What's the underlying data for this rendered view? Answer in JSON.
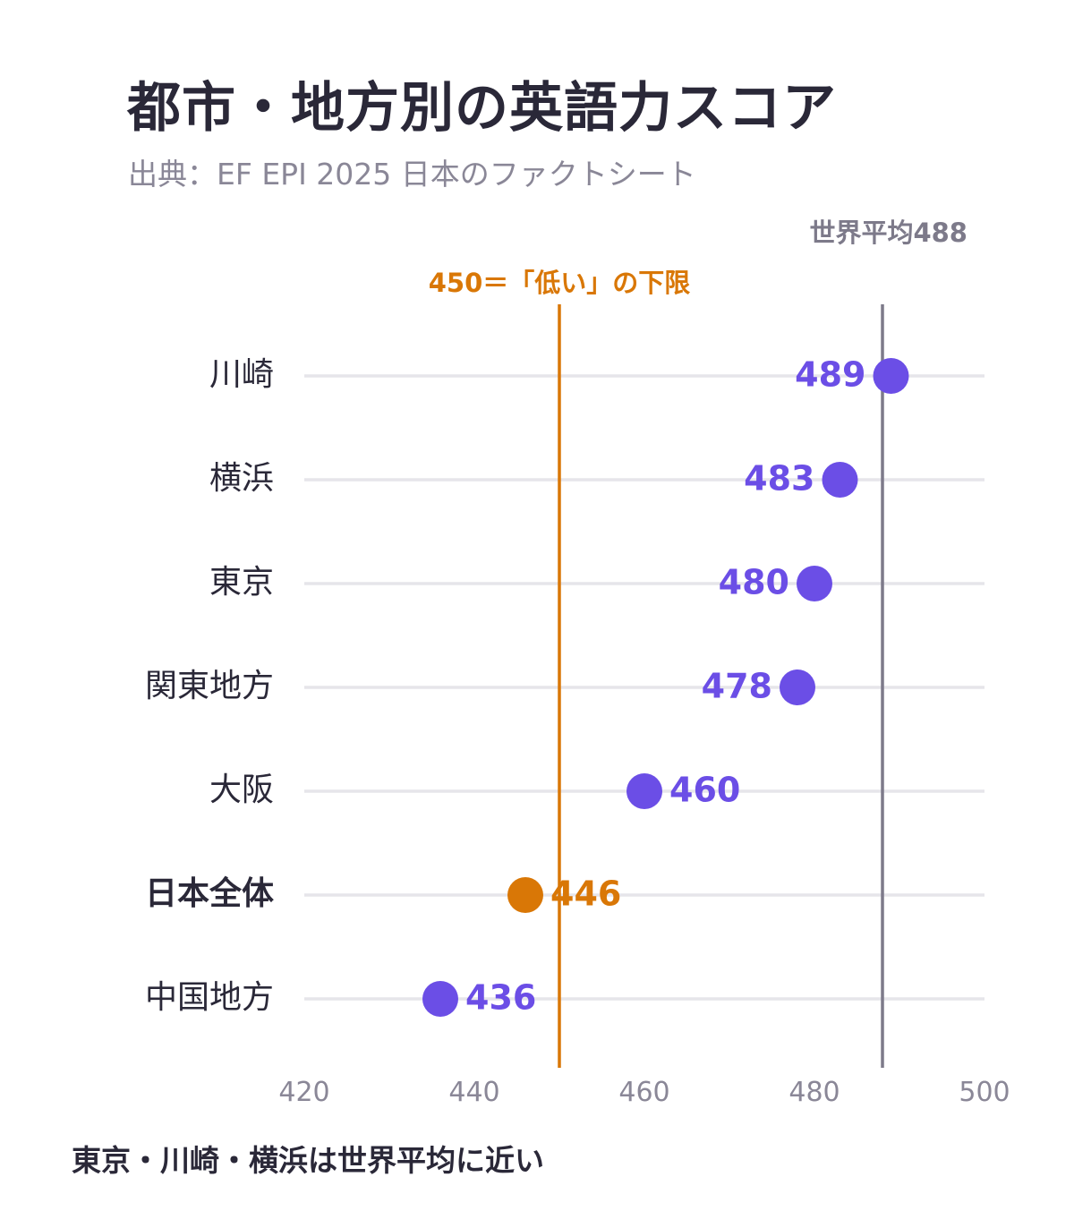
{
  "title": "都市・地方別の英語力スコア",
  "subtitle": "出典：EF EPI 2025 日本のファクトシート",
  "footnote": "東京・川崎・横浜は世界平均に近い",
  "colors": {
    "point": "#6b4ee6",
    "highlight": "#d97706",
    "reference_line": "#7d7a8a",
    "gridline": "#e6e5ea",
    "label_text": "#2a2838",
    "tick_text": "#8a8797"
  },
  "chart_data": {
    "type": "dot",
    "orientation": "horizontal",
    "categories": [
      "川崎",
      "横浜",
      "東京",
      "関東地方",
      "大阪",
      "日本全体",
      "中国地方"
    ],
    "values": [
      489,
      483,
      480,
      478,
      460,
      446,
      436
    ],
    "highlight_category": "日本全体",
    "xlim": [
      420,
      500
    ],
    "xticks": [
      420,
      440,
      460,
      480,
      500
    ],
    "reference_lines": [
      {
        "value": 450,
        "label": "450＝「低い」の下限",
        "color": "#d97706"
      },
      {
        "value": 488,
        "label": "世界平均488",
        "color": "#7d7a8a"
      }
    ],
    "grid": "horizontal-per-row",
    "legend": "none"
  }
}
